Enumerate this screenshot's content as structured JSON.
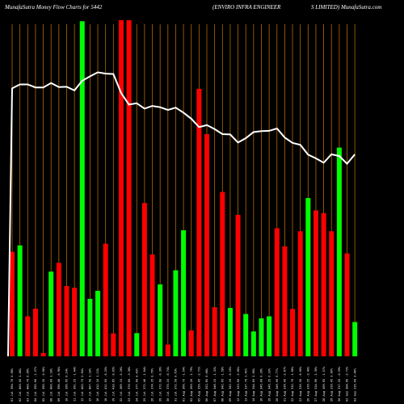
{
  "header": {
    "left": "MunafaSutra  Money Flow  Charts for 5442",
    "middle": "(ENVIRO INFRA ENGINEER",
    "right": "S LIMITED) MunafaSutra.com"
  },
  "colors": {
    "background": "#000000",
    "inflow": "#00ff00",
    "outflow": "#ff0000",
    "gridline": "#b36b00",
    "price_line": "#ffffff",
    "text": "#ffffff"
  },
  "chart_data": {
    "type": "bar",
    "y_axis": "hidden",
    "ylim": [
      0,
      100
    ],
    "categories": [
      "01 Jul 394.70 0.08%",
      "02 Jul 400.45 1.46%",
      "03 Jul 400.70 0.06%",
      "04 Jul 395.60 -1.27%",
      "05 Jul 395.35 -0.06%",
      "08 Jul 400.00 1.18%",
      "09 Jul 396.40 -0.90%",
      "10 Jul 396.95 0.14%",
      "11 Jul 391.25 -1.44%",
      "12 Jul 402.75 2.94%",
      "15 Jul 407.50 1.18%",
      "16 Jul 412.10 1.13%",
      "18 Jul 411.05 -0.25%",
      "19 Jul 410.85 -0.05%",
      "22 Jul 389.15 -5.28%",
      "23 Jul 376.00 -3.38%",
      "24 Jul 377.60 0.43%",
      "25 Jul 371.40 -1.64%",
      "26 Jul 374.35 0.79%",
      "29 Jul 372.90 -0.39%",
      "30 Jul 370.15 -0.74%",
      "31 Jul 372.50 0.63%",
      "01 Aug 366.75 -1.54%",
      "02 Aug 360.20 -1.79%",
      "05 Aug 350.45 -2.71%",
      "06 Aug 352.85 0.68%",
      "07 Aug 348.15 -1.33%",
      "08 Aug 342.65 -1.58%",
      "09 Aug 342.10 -0.16%",
      "12 Aug 333.00 -2.66%",
      "13 Aug 337.70 1.41%",
      "14 Aug 344.65 2.06%",
      "16 Aug 346.00 0.39%",
      "19 Aug 346.35 0.10%",
      "20 Aug 349.00 0.77%",
      "21 Aug 339.00 -2.87%",
      "22 Aug 332.70 -1.86%",
      "23 Aug 330.50 -0.66%",
      "26 Aug 319.25 -3.40%",
      "27 Aug 314.90 -1.36%",
      "28 Aug 309.95 -1.57%",
      "29 Aug 319.45 3.06%",
      "30 Aug 317.55 -0.59%",
      "02 Sep 308.90 -2.72%",
      "03 Sep 319.60 3.46%"
    ],
    "directions": [
      "outflow",
      "inflow",
      "outflow",
      "outflow",
      "outflow",
      "inflow",
      "outflow",
      "outflow",
      "outflow",
      "inflow",
      "inflow",
      "inflow",
      "outflow",
      "outflow",
      "outflow",
      "outflow",
      "inflow",
      "outflow",
      "outflow",
      "inflow",
      "outflow",
      "inflow",
      "inflow",
      "outflow",
      "outflow",
      "outflow",
      "outflow",
      "outflow",
      "inflow",
      "outflow",
      "inflow",
      "inflow",
      "inflow",
      "inflow",
      "outflow",
      "outflow",
      "outflow",
      "outflow",
      "inflow",
      "outflow",
      "outflow",
      "outflow",
      "inflow",
      "outflow",
      "inflow"
    ],
    "values": [
      31.1,
      33.0,
      11.9,
      14.2,
      1.0,
      25.2,
      27.8,
      20.9,
      20.4,
      99.7,
      17.1,
      19.5,
      33.5,
      6.8,
      100,
      100,
      6.9,
      45.6,
      30.3,
      21.4,
      3.5,
      25.6,
      37.5,
      7.7,
      79.6,
      66.1,
      14.6,
      48.9,
      14.4,
      42.1,
      12.6,
      7.4,
      11.3,
      11.9,
      38.1,
      32.7,
      14.1,
      37.2,
      47.1,
      43.4,
      42.6,
      37.2,
      62.1,
      30.6,
      10.2
    ],
    "price_line": [
      79.7,
      80.9,
      80.9,
      80.0,
      80.0,
      81.3,
      80.1,
      80.2,
      79.1,
      82.0,
      83.3,
      84.5,
      84.1,
      84.0,
      78.3,
      74.9,
      75.3,
      73.7,
      74.5,
      74.1,
      73.3,
      74.0,
      72.5,
      70.7,
      68.2,
      68.8,
      67.6,
      66.1,
      66.0,
      63.6,
      64.9,
      66.7,
      67.0,
      67.1,
      67.8,
      65.1,
      63.5,
      62.9,
      60.0,
      58.9,
      57.6,
      60.1,
      59.6,
      57.3,
      60.1
    ],
    "grid": true,
    "legend": "none"
  }
}
